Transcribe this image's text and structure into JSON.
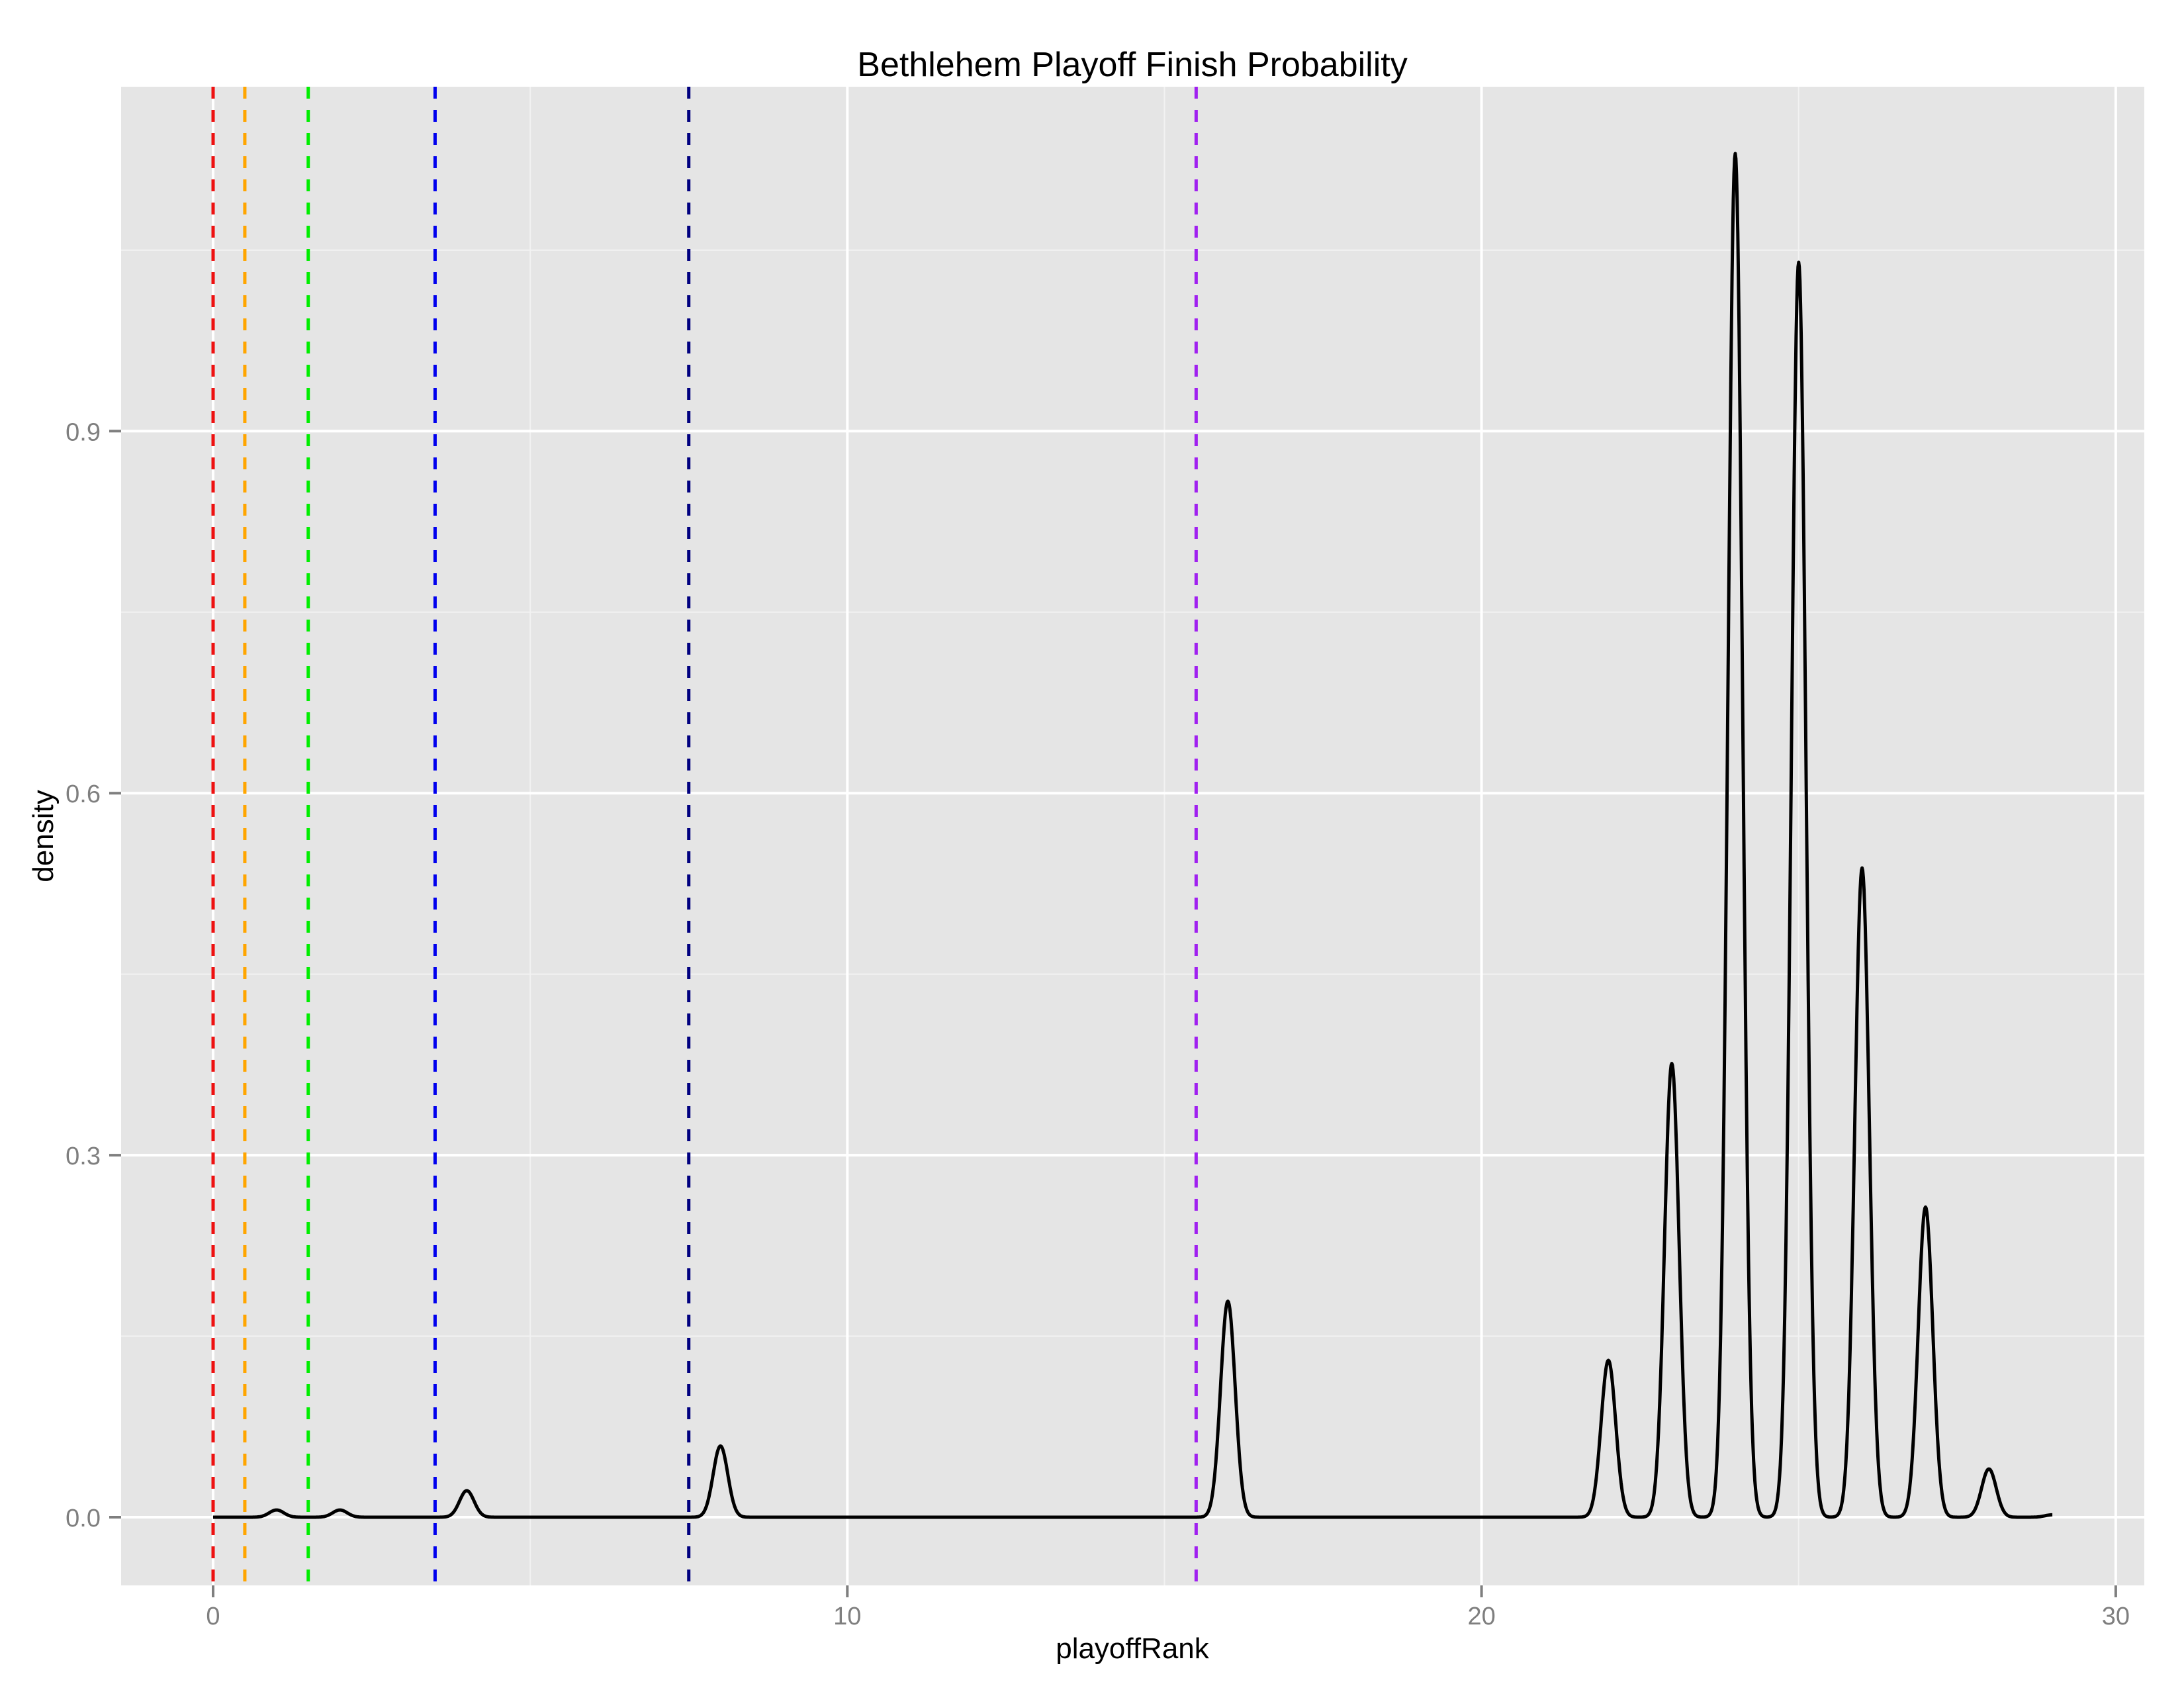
{
  "chart_data": {
    "type": "line",
    "subtype": "density",
    "title": "Bethlehem Playoff Finish Probability",
    "xlabel": "playoffRank",
    "ylabel": "density",
    "xlim": [
      -1.4,
      30.5
    ],
    "ylim": [
      -0.056,
      1.19
    ],
    "x_ticks": [
      0,
      10,
      20,
      30
    ],
    "x_tick_labels": [
      "0",
      "10",
      "20",
      "30"
    ],
    "x_minor_ticks": [
      5,
      15,
      25
    ],
    "y_ticks": [
      0.0,
      0.3,
      0.6,
      0.9
    ],
    "y_tick_labels": [
      "0.0",
      "0.3",
      "0.6",
      "0.9"
    ],
    "y_minor_ticks": [
      0.15,
      0.45,
      0.75,
      1.05
    ],
    "grid": true,
    "legend": "none",
    "background": "#e5e5e5",
    "series": [
      {
        "name": "density",
        "color": "#000000",
        "x_range": [
          0,
          29
        ],
        "peaks": [
          {
            "x": 1,
            "y": 0.006
          },
          {
            "x": 2,
            "y": 0.006
          },
          {
            "x": 4,
            "y": 0.022
          },
          {
            "x": 8,
            "y": 0.059
          },
          {
            "x": 16,
            "y": 0.179
          },
          {
            "x": 22,
            "y": 0.13
          },
          {
            "x": 23,
            "y": 0.376
          },
          {
            "x": 24,
            "y": 1.13
          },
          {
            "x": 25,
            "y": 1.04
          },
          {
            "x": 26,
            "y": 0.538
          },
          {
            "x": 27,
            "y": 0.257
          },
          {
            "x": 28,
            "y": 0.04
          },
          {
            "x": 29,
            "y": 0.002
          }
        ]
      }
    ],
    "vertical_lines": [
      {
        "x": 0,
        "color": "#ee1111",
        "style": "dashed"
      },
      {
        "x": 0.5,
        "color": "#ffa500",
        "style": "dashed"
      },
      {
        "x": 1.5,
        "color": "#00ee00",
        "style": "dashed"
      },
      {
        "x": 3.5,
        "color": "#0000ee",
        "style": "dashed"
      },
      {
        "x": 7.5,
        "color": "#000080",
        "style": "dashed"
      },
      {
        "x": 15.5,
        "color": "#a020f0",
        "style": "dashed"
      }
    ]
  }
}
